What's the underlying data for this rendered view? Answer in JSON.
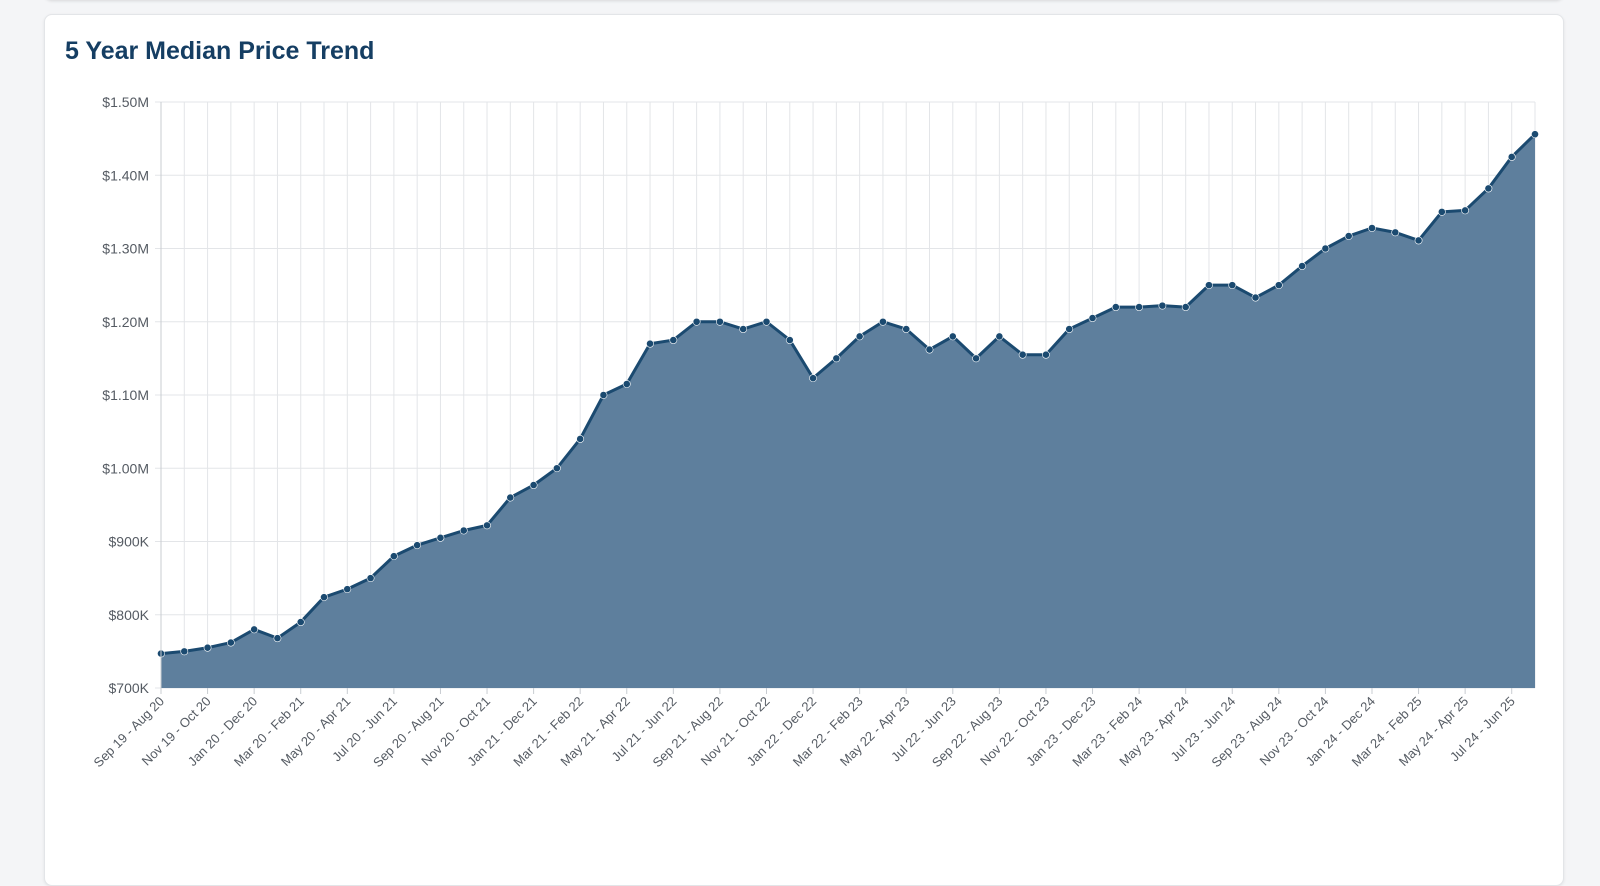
{
  "card": {
    "title": "5 Year Median Price Trend"
  },
  "colors": {
    "line": "#1b4a70",
    "fill": "#5e7f9d",
    "point": "#1b4a70",
    "title": "#153e63",
    "grid": "#e3e5e8",
    "axis_text": "#555b63"
  },
  "chart_data": {
    "type": "area",
    "title": "5 Year Median Price Trend",
    "xlabel": "",
    "ylabel": "",
    "ylim": [
      700000,
      1500000
    ],
    "y_ticks": [
      {
        "value": 700000,
        "label": "$700K"
      },
      {
        "value": 800000,
        "label": "$800K"
      },
      {
        "value": 900000,
        "label": "$900K"
      },
      {
        "value": 1000000,
        "label": "$1.00M"
      },
      {
        "value": 1100000,
        "label": "$1.10M"
      },
      {
        "value": 1200000,
        "label": "$1.20M"
      },
      {
        "value": 1300000,
        "label": "$1.30M"
      },
      {
        "value": 1400000,
        "label": "$1.40M"
      },
      {
        "value": 1500000,
        "label": "$1.50M"
      }
    ],
    "grid": true,
    "x_tick_labels": [
      "Sep 19 - Aug 20",
      "Nov 19 - Oct 20",
      "Jan 20 - Dec 20",
      "Mar 20 - Feb 21",
      "May 20 - Apr 21",
      "Jul 20 - Jun 21",
      "Sep 20 - Aug 21",
      "Nov 20 - Oct 21",
      "Jan 21 - Dec 21",
      "Mar 21 - Feb 22",
      "May 21 - Apr 22",
      "Jul 21 - Jun 22",
      "Sep 21 - Aug 22",
      "Nov 21 - Oct 22",
      "Jan 22 - Dec 22",
      "Mar 22 - Feb 23",
      "May 22 - Apr 23",
      "Jul 22 - Jun 23",
      "Sep 22 - Aug 23",
      "Nov 22 - Oct 23",
      "Jan 23 - Dec 23",
      "Mar 23 - Feb 24",
      "May 23 - Apr 24",
      "Jul 23 - Jun 24",
      "Sep 23 - Aug 24",
      "Nov 23 - Oct 24",
      "Jan 24 - Dec 24",
      "Mar 24 - Feb 25",
      "May 24 - Apr 25",
      "Jul 24 - Jun 25"
    ],
    "series": [
      {
        "values": [
          747000,
          750000,
          755000,
          762000,
          780000,
          768000,
          790000,
          824000,
          835000,
          850000,
          880000,
          895000,
          905000,
          915000,
          922000,
          960000,
          977000,
          1000000,
          1040000,
          1100000,
          1115000,
          1170000,
          1175000,
          1200000,
          1200000,
          1190000,
          1200000,
          1175000,
          1123000,
          1150000,
          1180000,
          1200000,
          1190000,
          1162000,
          1180000,
          1150000,
          1180000,
          1155000,
          1155000,
          1190000,
          1205000,
          1220000,
          1220000,
          1222000,
          1220000,
          1250000,
          1250000,
          1233000,
          1250000,
          1276000,
          1300000,
          1317000,
          1328000,
          1322000,
          1311000,
          1350000,
          1352000,
          1382000,
          1425000,
          1456000
        ]
      }
    ]
  }
}
